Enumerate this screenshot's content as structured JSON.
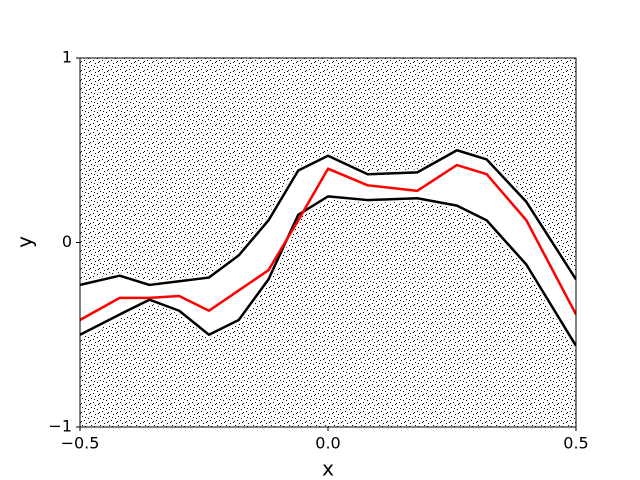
{
  "chart_data": {
    "type": "line",
    "x_label": "x",
    "y_label": "y",
    "x": [
      -0.5,
      -0.42,
      -0.36,
      -0.3,
      -0.24,
      -0.18,
      -0.12,
      -0.06,
      0.0,
      0.08,
      0.18,
      0.26,
      0.32,
      0.4,
      0.5
    ],
    "series": [
      {
        "color": "#000000",
        "values": [
          -0.23,
          -0.18,
          -0.23,
          -0.21,
          -0.19,
          -0.07,
          0.12,
          0.39,
          0.47,
          0.37,
          0.38,
          0.5,
          0.45,
          0.22,
          -0.2
        ]
      },
      {
        "color": "#000000",
        "values": [
          -0.5,
          -0.39,
          -0.31,
          -0.37,
          -0.5,
          -0.42,
          -0.2,
          0.15,
          0.25,
          0.23,
          0.24,
          0.2,
          0.12,
          -0.12,
          -0.56
        ]
      },
      {
        "color": "#ff0000",
        "values": [
          -0.42,
          -0.3,
          -0.3,
          -0.29,
          -0.37,
          -0.26,
          -0.15,
          0.12,
          0.4,
          0.31,
          0.28,
          0.42,
          0.37,
          0.12,
          -0.39
        ]
      }
    ],
    "xlim": [
      -0.5,
      0.5
    ],
    "xticks": [
      {
        "value": -0.5,
        "label": "−0.5"
      },
      {
        "value": 0,
        "label": "0.0"
      },
      0.5
    ],
    "ylim": [
      -1,
      1
    ],
    "yticks": [
      {
        "value": -1,
        "label": "−1"
      },
      0,
      1
    ],
    "grid": false
  }
}
